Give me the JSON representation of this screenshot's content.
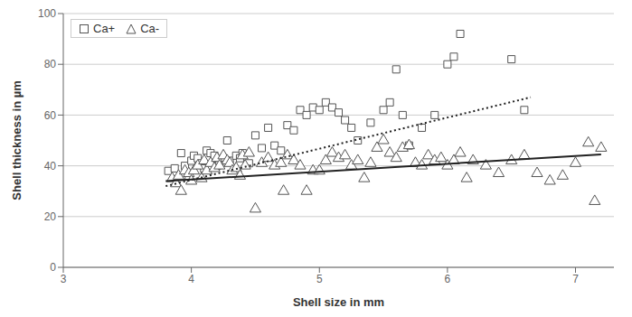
{
  "chart_data": {
    "type": "scatter",
    "xlabel": "Shell size in mm",
    "ylabel": "Shell thickness in µm",
    "xlim": [
      3,
      7.3
    ],
    "ylim": [
      0,
      100
    ],
    "xticks": [
      3,
      4,
      5,
      6,
      7
    ],
    "yticks": [
      0,
      20,
      40,
      60,
      80,
      100
    ],
    "grid": true,
    "legend": "upper left",
    "series": [
      {
        "name": "Ca+",
        "type": "scatter",
        "marker": "square",
        "color": "#555555",
        "x": [
          3.82,
          3.87,
          3.92,
          3.95,
          3.98,
          4.0,
          4.02,
          4.05,
          4.08,
          4.1,
          4.12,
          4.15,
          4.18,
          4.2,
          4.22,
          4.25,
          4.28,
          4.3,
          4.35,
          4.38,
          4.4,
          4.45,
          4.5,
          4.55,
          4.6,
          4.65,
          4.7,
          4.75,
          4.8,
          4.85,
          4.9,
          4.95,
          5.0,
          5.05,
          5.1,
          5.15,
          5.2,
          5.25,
          5.3,
          5.4,
          5.5,
          5.55,
          5.6,
          5.65,
          5.7,
          5.8,
          5.9,
          6.0,
          6.05,
          6.1,
          6.5,
          6.6
        ],
        "values": [
          38,
          39,
          45,
          40,
          36,
          42,
          44,
          43,
          41,
          39,
          46,
          45,
          44,
          40,
          41,
          43,
          50,
          42,
          44,
          43,
          45,
          41,
          52,
          47,
          55,
          48,
          46,
          56,
          54,
          62,
          60,
          63,
          62,
          65,
          63,
          61,
          58,
          55,
          50,
          57,
          62,
          65,
          78,
          60,
          48,
          55,
          60,
          80,
          83,
          92,
          82,
          62
        ]
      },
      {
        "name": "Ca-",
        "type": "scatter",
        "marker": "triangle",
        "color": "#555555",
        "x": [
          3.85,
          3.88,
          3.9,
          3.92,
          3.95,
          3.98,
          4.0,
          4.02,
          4.05,
          4.08,
          4.1,
          4.12,
          4.15,
          4.18,
          4.2,
          4.22,
          4.25,
          4.28,
          4.3,
          4.32,
          4.35,
          4.38,
          4.4,
          4.42,
          4.45,
          4.5,
          4.55,
          4.6,
          4.65,
          4.7,
          4.72,
          4.75,
          4.8,
          4.85,
          4.9,
          4.95,
          5.0,
          5.05,
          5.1,
          5.15,
          5.2,
          5.25,
          5.3,
          5.35,
          5.4,
          5.45,
          5.5,
          5.55,
          5.6,
          5.65,
          5.7,
          5.75,
          5.8,
          5.85,
          5.9,
          5.95,
          6.0,
          6.05,
          6.1,
          6.15,
          6.2,
          6.3,
          6.4,
          6.5,
          6.6,
          6.7,
          6.8,
          6.9,
          7.0,
          7.1,
          7.15,
          7.2
        ],
        "values": [
          35,
          33,
          36,
          30,
          38,
          37,
          34,
          38,
          40,
          35,
          42,
          38,
          41,
          39,
          43,
          40,
          44,
          42,
          41,
          38,
          39,
          36,
          44,
          40,
          45,
          23,
          41,
          43,
          40,
          41,
          30,
          44,
          42,
          40,
          30,
          38,
          38,
          42,
          45,
          43,
          44,
          40,
          42,
          35,
          41,
          47,
          50,
          45,
          43,
          47,
          48,
          41,
          40,
          44,
          42,
          43,
          40,
          42,
          45,
          35,
          42,
          40,
          37,
          42,
          44,
          37,
          34,
          36,
          41,
          49,
          26,
          47
        ]
      },
      {
        "type": "line",
        "line_style": "dotted",
        "color": "#222222",
        "x": [
          3.8,
          6.65
        ],
        "values": [
          32.0,
          67.0
        ]
      },
      {
        "type": "line",
        "line_style": "solid",
        "color": "#222222",
        "x": [
          3.8,
          7.2
        ],
        "values": [
          34.0,
          44.5
        ]
      }
    ]
  }
}
